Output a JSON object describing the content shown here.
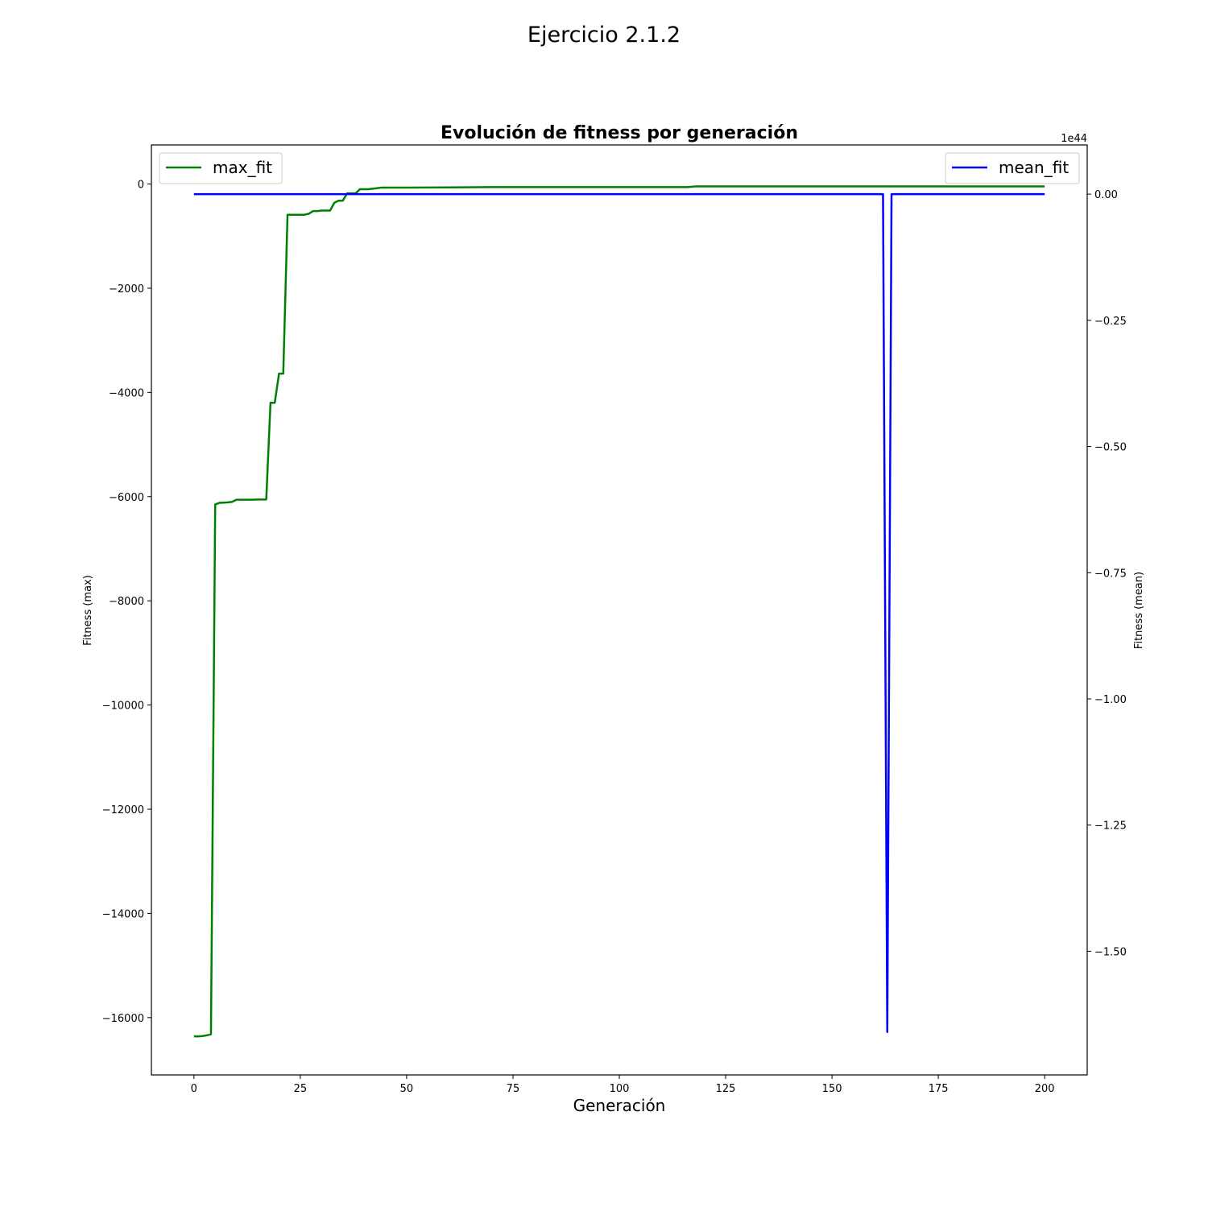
{
  "figure": {
    "suptitle": "Ejercicio 2.1.2"
  },
  "chart_data": {
    "type": "line",
    "title": "Evolución de fitness por generación",
    "xlabel": "Generación",
    "ylabel_left": "Fitness (max)",
    "ylabel_right": "Fitness (mean)",
    "right_axis_offset_label": "1e44",
    "xlim": [
      -10,
      210
    ],
    "ylim_left": [
      -17100,
      750
    ],
    "ylim_right": [
      -1.745,
      0.0975
    ],
    "right_axis_scale": "1e44",
    "grid": false,
    "x_ticks": [
      0,
      25,
      50,
      75,
      100,
      125,
      150,
      175,
      200
    ],
    "x_tick_labels": [
      "0",
      "25",
      "50",
      "75",
      "100",
      "125",
      "150",
      "175",
      "200"
    ],
    "y_left_ticks": [
      0,
      -2000,
      -4000,
      -6000,
      -8000,
      -10000,
      -12000,
      -14000,
      -16000
    ],
    "y_left_tick_labels": [
      "0",
      "−2000",
      "−4000",
      "−6000",
      "−8000",
      "−10000",
      "−12000",
      "−14000",
      "−16000"
    ],
    "y_right_ticks": [
      0.0,
      -0.25,
      -0.5,
      -0.75,
      -1.0,
      -1.25,
      -1.5
    ],
    "y_right_tick_labels": [
      "0.00",
      "−0.25",
      "−0.50",
      "−0.75",
      "−1.00",
      "−1.25",
      "−1.50"
    ],
    "legend_left": {
      "placement": "upper left",
      "label": "max_fit",
      "color": "#008000"
    },
    "legend_right": {
      "placement": "upper right",
      "label": "mean_fit",
      "color": "#0000ff"
    },
    "series": [
      {
        "name": "max_fit",
        "axis": "left",
        "color": "#008000",
        "points": [
          [
            0,
            -16360
          ],
          [
            1,
            -16360
          ],
          [
            2,
            -16355
          ],
          [
            3,
            -16340
          ],
          [
            4,
            -16320
          ],
          [
            5,
            -6150
          ],
          [
            6,
            -6120
          ],
          [
            7,
            -6115
          ],
          [
            8,
            -6110
          ],
          [
            9,
            -6100
          ],
          [
            10,
            -6060
          ],
          [
            11,
            -6060
          ],
          [
            12,
            -6060
          ],
          [
            13,
            -6060
          ],
          [
            14,
            -6060
          ],
          [
            15,
            -6055
          ],
          [
            16,
            -6055
          ],
          [
            17,
            -6055
          ],
          [
            18,
            -4200
          ],
          [
            19,
            -4200
          ],
          [
            20,
            -3640
          ],
          [
            21,
            -3640
          ],
          [
            22,
            -590
          ],
          [
            23,
            -590
          ],
          [
            24,
            -590
          ],
          [
            25,
            -590
          ],
          [
            26,
            -590
          ],
          [
            27,
            -570
          ],
          [
            28,
            -520
          ],
          [
            29,
            -520
          ],
          [
            30,
            -510
          ],
          [
            31,
            -510
          ],
          [
            32,
            -510
          ],
          [
            33,
            -360
          ],
          [
            34,
            -320
          ],
          [
            35,
            -320
          ],
          [
            36,
            -180
          ],
          [
            37,
            -180
          ],
          [
            38,
            -180
          ],
          [
            39,
            -100
          ],
          [
            40,
            -100
          ],
          [
            41,
            -100
          ],
          [
            42,
            -90
          ],
          [
            43,
            -80
          ],
          [
            44,
            -70
          ],
          [
            50,
            -70
          ],
          [
            60,
            -65
          ],
          [
            70,
            -60
          ],
          [
            80,
            -60
          ],
          [
            90,
            -60
          ],
          [
            100,
            -60
          ],
          [
            110,
            -60
          ],
          [
            116,
            -60
          ],
          [
            118,
            -45
          ],
          [
            120,
            -45
          ],
          [
            140,
            -45
          ],
          [
            160,
            -45
          ],
          [
            162,
            -45
          ],
          [
            163,
            -45
          ],
          [
            170,
            -45
          ],
          [
            180,
            -45
          ],
          [
            190,
            -45
          ],
          [
            200,
            -45
          ]
        ]
      },
      {
        "name": "mean_fit",
        "axis": "right",
        "right_scale": "1e44",
        "color": "#0000ff",
        "points": [
          [
            0,
            0.0
          ],
          [
            50,
            0.0
          ],
          [
            100,
            0.0
          ],
          [
            150,
            0.0
          ],
          [
            162,
            0.0
          ],
          [
            163,
            -1.66
          ],
          [
            164,
            0.0
          ],
          [
            180,
            0.0
          ],
          [
            200,
            0.0
          ]
        ]
      }
    ]
  }
}
